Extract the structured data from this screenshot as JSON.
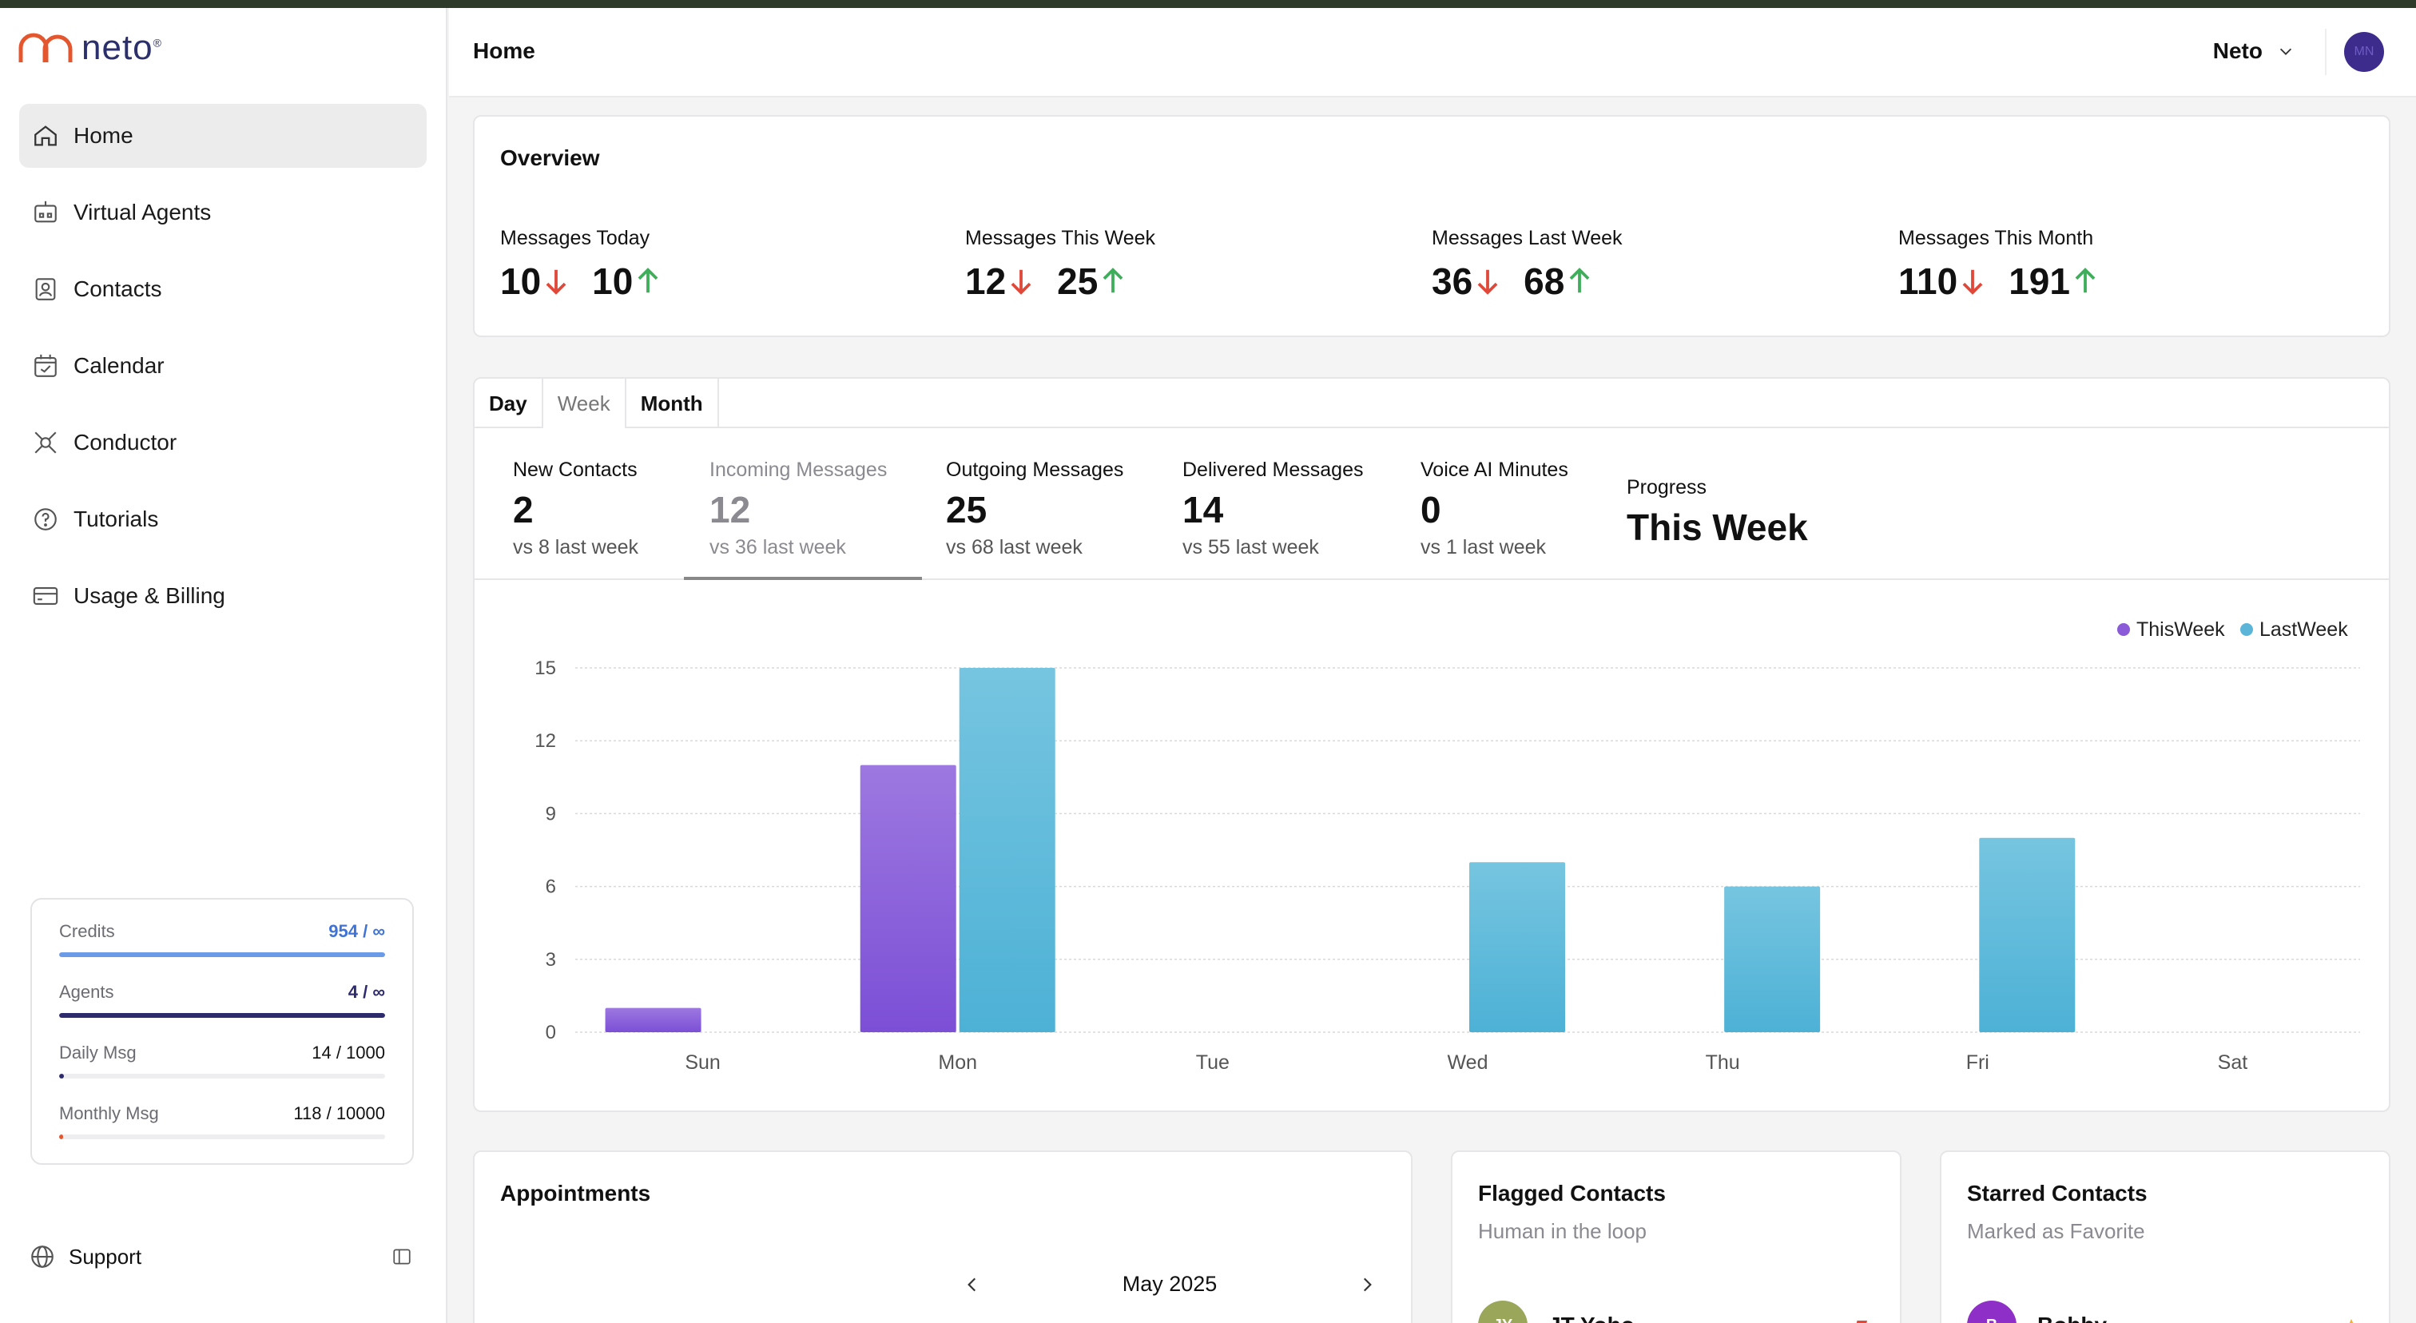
{
  "app": {
    "logo_text": "neto",
    "logo_reg": "®"
  },
  "sidebar": {
    "items": [
      {
        "label": "Home",
        "icon": "home-icon",
        "active": true
      },
      {
        "label": "Virtual Agents",
        "icon": "robot-icon"
      },
      {
        "label": "Contacts",
        "icon": "contact-card-icon"
      },
      {
        "label": "Calendar",
        "icon": "calendar-check-icon"
      },
      {
        "label": "Conductor",
        "icon": "conductor-icon"
      },
      {
        "label": "Tutorials",
        "icon": "question-circle-icon"
      },
      {
        "label": "Usage & Billing",
        "icon": "credit-card-icon"
      }
    ],
    "usage": {
      "credits_label": "Credits",
      "credits_value": "954 / ∞",
      "credits_fill": 1.0,
      "agents_label": "Agents",
      "agents_value": "4 / ∞",
      "agents_fill": 1.0,
      "daily_label": "Daily Msg",
      "daily_value": "14 / 1000",
      "daily_fill": 0.014,
      "monthly_label": "Monthly Msg",
      "monthly_value": "118 / 10000",
      "monthly_fill": 0.0118
    },
    "support_label": "Support",
    "colors": {
      "credits": "#6b9be6",
      "agents": "#2d2a6e",
      "daily": "#2d2a6e",
      "monthly": "#e4572e"
    }
  },
  "header": {
    "title": "Home",
    "account_name": "Neto",
    "avatar_initials": "MN"
  },
  "overview": {
    "title": "Overview",
    "stats": [
      {
        "label": "Messages Today",
        "a": "10",
        "b": "10"
      },
      {
        "label": "Messages This Week",
        "a": "12",
        "b": "25"
      },
      {
        "label": "Messages Last Week",
        "a": "36",
        "b": "68"
      },
      {
        "label": "Messages This Month",
        "a": "110",
        "b": "191"
      }
    ]
  },
  "stats": {
    "tabs": [
      "Day",
      "Week",
      "Month"
    ],
    "selected_tab": "Week",
    "metrics": [
      {
        "label": "New Contacts",
        "value": "2",
        "sub": "vs 8 last week"
      },
      {
        "label": "Incoming Messages",
        "value": "12",
        "sub": "vs 36 last week"
      },
      {
        "label": "Outgoing Messages",
        "value": "25",
        "sub": "vs 68 last week"
      },
      {
        "label": "Delivered Messages",
        "value": "14",
        "sub": "vs 55 last week"
      },
      {
        "label": "Voice AI Minutes",
        "value": "0",
        "sub": "vs 1 last week"
      }
    ],
    "progress_label": "Progress",
    "progress_value": "This Week"
  },
  "chart_data": {
    "type": "bar",
    "categories": [
      "Sun",
      "Mon",
      "Tue",
      "Wed",
      "Thu",
      "Fri",
      "Sat"
    ],
    "series": [
      {
        "name": "ThisWeek",
        "values": [
          1,
          11,
          0,
          0,
          0,
          0,
          0
        ],
        "color": "#8a5ad8"
      },
      {
        "name": "LastWeek",
        "values": [
          0,
          15,
          0,
          7,
          6,
          8,
          0
        ],
        "color": "#5bb5d9"
      }
    ],
    "yticks": [
      0,
      3,
      6,
      9,
      12,
      15
    ],
    "ylim": [
      0,
      15
    ],
    "grid": true,
    "legend": "top-right"
  },
  "appointments": {
    "title": "Appointments",
    "month": "May 2025"
  },
  "flagged": {
    "title": "Flagged Contacts",
    "subtitle": "Human in the loop",
    "contact_name": "JT Yoho",
    "contact_initials": "JY"
  },
  "starred": {
    "title": "Starred Contacts",
    "subtitle": "Marked as Favorite",
    "contact_name": "Bobby",
    "contact_initials": "B"
  }
}
